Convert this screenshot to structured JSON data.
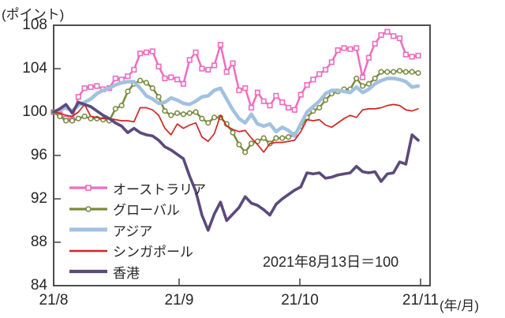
{
  "chart_data": {
    "type": "line",
    "unit_left": "(ポイント)",
    "x_unit": "(年/月)",
    "annotation": "2021年8月13日＝100",
    "x_tick_labels": [
      "21/8",
      "21/9",
      "21/10",
      "21/11"
    ],
    "y_ticks": [
      84,
      88,
      92,
      96,
      100,
      104,
      108
    ],
    "ylim": [
      84,
      108
    ],
    "grid": false,
    "legend_position": "inside-left-bottom",
    "axis_color": "#4d4d4d",
    "text_color": "#262626",
    "series": [
      {
        "key": "australia",
        "name": "オーストラリア",
        "color": "#ee6cbe",
        "marker": "square",
        "width": 2.5,
        "values": [
          100.0,
          99.8,
          99.4,
          99.3,
          101.4,
          102.2,
          102.3,
          102.4,
          102.1,
          102.2,
          103.1,
          103.0,
          103.3,
          103.9,
          105.4,
          105.5,
          105.6,
          104.2,
          103.1,
          103.2,
          103.0,
          102.6,
          104.8,
          105.5,
          104.0,
          103.9,
          104.3,
          106.2,
          103.7,
          104.5,
          102.0,
          102.2,
          100.4,
          101.8,
          101.0,
          100.6,
          101.5,
          100.9,
          100.4,
          100.2,
          101.6,
          102.5,
          103.0,
          103.5,
          103.9,
          104.6,
          105.7,
          105.9,
          105.8,
          105.9,
          103.2,
          105.0,
          106.3,
          107.1,
          107.4,
          107.0,
          106.8,
          105.3,
          105.1,
          105.2
        ]
      },
      {
        "key": "global",
        "name": "グローバル",
        "color": "#7a8b40",
        "marker": "circle",
        "width": 2.5,
        "values": [
          100.0,
          99.6,
          99.2,
          99.2,
          99.4,
          99.6,
          99.4,
          99.4,
          99.3,
          99.2,
          100.3,
          100.6,
          101.9,
          102.6,
          102.9,
          102.7,
          102.2,
          101.4,
          100.1,
          99.7,
          99.9,
          99.8,
          99.9,
          100.0,
          99.4,
          99.0,
          99.5,
          99.5,
          98.9,
          98.1,
          97.0,
          96.3,
          97.1,
          97.3,
          97.6,
          97.1,
          97.6,
          97.6,
          97.7,
          97.9,
          98.7,
          99.5,
          100.1,
          100.4,
          101.1,
          101.7,
          101.9,
          102.1,
          102.1,
          103.1,
          102.4,
          102.6,
          103.1,
          103.7,
          103.7,
          103.7,
          103.8,
          103.7,
          103.7,
          103.6
        ]
      },
      {
        "key": "asia",
        "name": "アジア",
        "color": "#a2c1e0",
        "marker": "none",
        "width": 4.5,
        "values": [
          100.0,
          100.2,
          100.4,
          100.1,
          100.6,
          100.9,
          101.2,
          101.7,
          102.0,
          102.2,
          102.5,
          102.7,
          102.8,
          102.8,
          102.2,
          101.5,
          101.2,
          100.8,
          100.9,
          101.3,
          101.1,
          100.8,
          100.7,
          101.0,
          101.4,
          101.5,
          102.0,
          102.2,
          101.2,
          100.2,
          99.4,
          99.0,
          99.8,
          98.9,
          98.7,
          98.9,
          98.2,
          98.6,
          98.3,
          97.8,
          98.9,
          100.0,
          100.5,
          101.0,
          101.7,
          102.0,
          102.0,
          101.9,
          101.8,
          102.3,
          101.8,
          102.1,
          102.6,
          102.9,
          103.1,
          103.1,
          103.0,
          102.8,
          102.3,
          102.4
        ]
      },
      {
        "key": "singapore",
        "name": "シンガポール",
        "color": "#d02525",
        "marker": "none",
        "width": 1.7,
        "values": [
          100.0,
          99.9,
          99.7,
          99.6,
          100.0,
          100.7,
          99.6,
          99.5,
          99.4,
          99.4,
          99.3,
          99.2,
          99.2,
          99.1,
          100.4,
          100.4,
          100.2,
          99.7,
          98.5,
          97.9,
          98.9,
          98.5,
          98.8,
          99.0,
          97.7,
          97.3,
          98.0,
          99.7,
          98.7,
          98.4,
          98.2,
          98.3,
          97.6,
          97.0,
          96.3,
          97.1,
          97.2,
          97.2,
          97.3,
          97.4,
          98.2,
          99.3,
          99.2,
          99.3,
          98.8,
          98.6,
          99.0,
          99.4,
          99.7,
          99.5,
          100.2,
          100.3,
          100.3,
          100.4,
          100.6,
          100.7,
          100.6,
          100.2,
          100.1,
          100.3
        ]
      },
      {
        "key": "hongkong",
        "name": "香港",
        "color": "#5b4a7b",
        "marker": "none",
        "width": 3.6,
        "values": [
          100.0,
          100.3,
          100.7,
          99.9,
          100.9,
          100.7,
          100.5,
          100.1,
          99.7,
          99.4,
          99.0,
          98.7,
          98.1,
          98.5,
          98.1,
          97.9,
          97.8,
          97.4,
          96.8,
          96.5,
          96.1,
          95.7,
          94.1,
          92.7,
          90.5,
          89.1,
          90.6,
          91.7,
          90.0,
          90.6,
          91.2,
          92.2,
          91.6,
          91.4,
          91.0,
          90.5,
          91.5,
          92.0,
          92.4,
          92.8,
          93.1,
          94.4,
          94.3,
          94.4,
          93.9,
          94.0,
          94.2,
          94.3,
          94.4,
          95.0,
          94.5,
          94.4,
          94.5,
          93.6,
          94.3,
          94.4,
          95.4,
          95.2,
          97.9,
          97.4
        ]
      }
    ]
  }
}
